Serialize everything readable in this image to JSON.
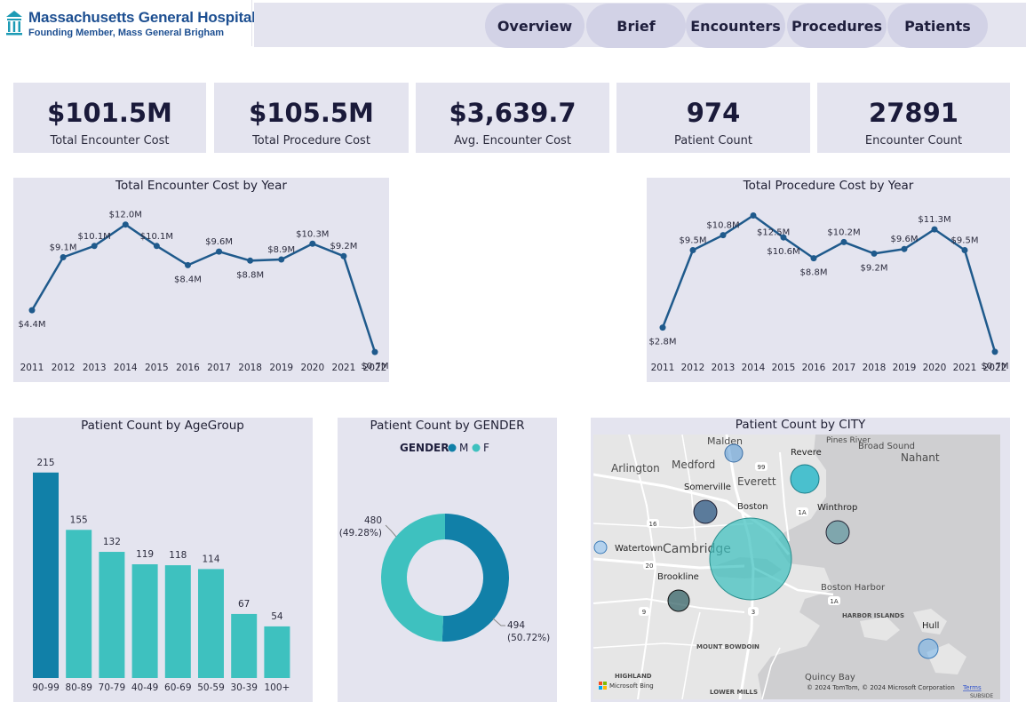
{
  "header": {
    "title": "Massachusetts General Hospital",
    "subtitle": "Founding Member, Mass General Brigham",
    "nav": [
      "Overview",
      "Brief",
      "Encounters",
      "Procedures",
      "Patients"
    ]
  },
  "kpis": [
    {
      "value": "$101.5M",
      "label": "Total Encounter Cost"
    },
    {
      "value": "$105.5M",
      "label": "Total Procedure Cost"
    },
    {
      "value": "$3,639.7",
      "label": "Avg. Encounter Cost"
    },
    {
      "value": "974",
      "label": "Patient Count"
    },
    {
      "value": "27891",
      "label": "Encounter Count"
    }
  ],
  "colors": {
    "line": "#1f5a8c",
    "bar_dark": "#1180a8",
    "bar_light": "#3ec1bf",
    "male": "#1180a8",
    "female": "#3ec1bf",
    "panel_bg": "#e4e4ef"
  },
  "chart_data": [
    {
      "type": "line",
      "title": "Total Encounter Cost by Year",
      "categories": [
        "2011",
        "2012",
        "2013",
        "2014",
        "2015",
        "2016",
        "2017",
        "2018",
        "2019",
        "2020",
        "2021",
        "2022"
      ],
      "values": [
        4.4,
        9.1,
        10.1,
        12.0,
        10.1,
        8.4,
        9.6,
        8.8,
        8.9,
        10.3,
        9.2,
        0.7
      ],
      "labels": [
        "$4.4M",
        "$9.1M",
        "$10.1M",
        "$12.0M",
        "$10.1M",
        "$8.4M",
        "$9.6M",
        "$8.8M",
        "$8.9M",
        "$10.3M",
        "$9.2M",
        "$0.7M"
      ],
      "label_pos": [
        "below",
        "above",
        "above",
        "above",
        "above",
        "below",
        "above",
        "below",
        "above",
        "above",
        "above",
        "below"
      ],
      "ylim": [
        0,
        13
      ]
    },
    {
      "type": "line",
      "title": "Total Procedure Cost by Year",
      "categories": [
        "2011",
        "2012",
        "2013",
        "2014",
        "2015",
        "2016",
        "2017",
        "2018",
        "2019",
        "2020",
        "2021",
        "2022"
      ],
      "values": [
        2.8,
        9.5,
        10.8,
        12.5,
        10.6,
        8.8,
        10.2,
        9.2,
        9.6,
        11.3,
        9.5,
        0.7
      ],
      "labels": [
        "$2.8M",
        "$9.5M",
        "$10.8M",
        "$12.5M",
        "$10.6M",
        "$8.8M",
        "$10.2M",
        "$9.2M",
        "$9.6M",
        "$11.3M",
        "$9.5M",
        "$0.7M"
      ],
      "label_pos": [
        "below",
        "above",
        "above",
        "right",
        "below",
        "below",
        "above",
        "below",
        "above",
        "above",
        "above",
        "below"
      ],
      "ylim": [
        0,
        13
      ]
    },
    {
      "type": "bar",
      "title": "Patient Count by AgeGroup",
      "categories": [
        "90-99",
        "80-89",
        "70-79",
        "40-49",
        "60-69",
        "50-59",
        "30-39",
        "100+"
      ],
      "values": [
        215,
        155,
        132,
        119,
        118,
        114,
        67,
        54
      ],
      "ylim": [
        0,
        225
      ]
    },
    {
      "type": "pie",
      "title": "Patient Count by GENDER",
      "legend_title": "GENDER",
      "categories": [
        "M",
        "F"
      ],
      "values": [
        494,
        480
      ],
      "percents": [
        "(50.72%)",
        "(49.28%)"
      ]
    }
  ],
  "map": {
    "title": "Patient Count by CITY",
    "places": [
      {
        "name": "Malden"
      },
      {
        "name": "Medford"
      },
      {
        "name": "Arlington"
      },
      {
        "name": "Everett"
      },
      {
        "name": "Somerville"
      },
      {
        "name": "Boston"
      },
      {
        "name": "Revere"
      },
      {
        "name": "Winthrop"
      },
      {
        "name": "Watertown"
      },
      {
        "name": "Cambridge"
      },
      {
        "name": "Brookline"
      },
      {
        "name": "Hull"
      },
      {
        "name": "Nahant"
      },
      {
        "name": "Broad Sound"
      },
      {
        "name": "Pines River"
      },
      {
        "name": "Boston Harbor"
      },
      {
        "name": "HARBOR ISLANDS"
      },
      {
        "name": "MOUNT BOWDOIN"
      },
      {
        "name": "HIGHLAND"
      },
      {
        "name": "Quincy Bay"
      },
      {
        "name": "LOWER MILLS"
      },
      {
        "name": "SUBSIDE"
      }
    ],
    "attribution": "© 2024 TomTom, © 2024 Microsoft Corporation",
    "terms": "Terms",
    "bing": "Microsoft Bing",
    "road_labels": [
      "99",
      "16",
      "1A",
      "20",
      "3",
      "9",
      "1A"
    ]
  }
}
